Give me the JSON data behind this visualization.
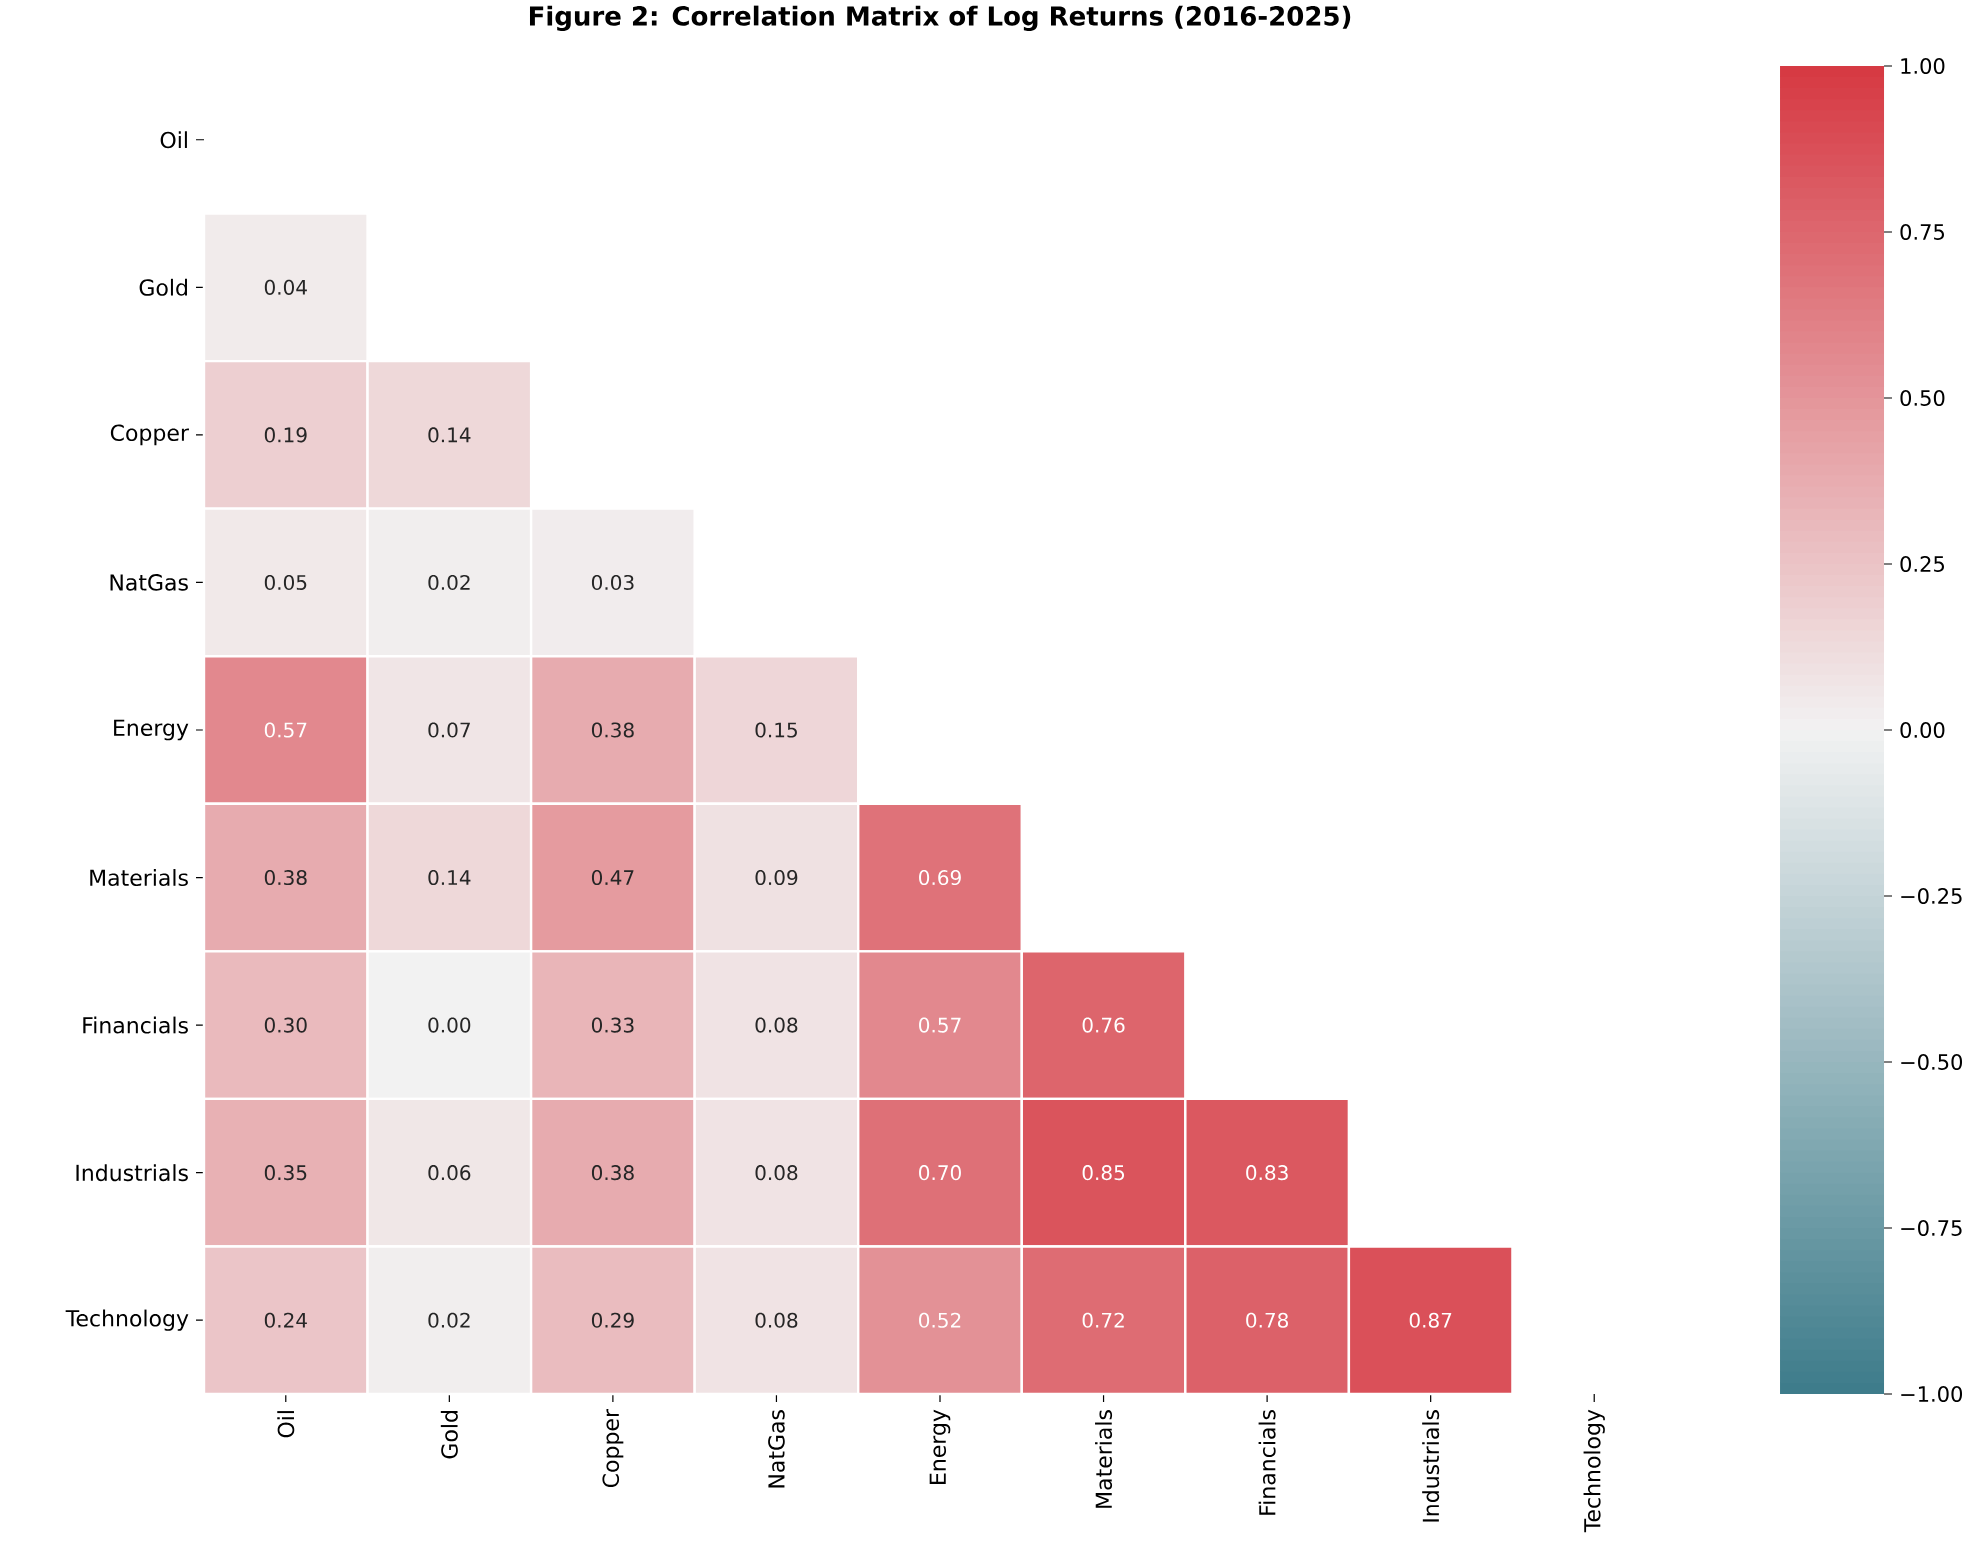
{
  "chart_data": {
    "type": "heatmap",
    "title": "Figure 2: Correlation Matrix of Log Returns (2016-2025)",
    "categories": [
      "Oil",
      "Gold",
      "Copper",
      "NatGas",
      "Energy",
      "Materials",
      "Financials",
      "Industrials",
      "Technology"
    ],
    "y_categories": [
      "Oil",
      "Gold",
      "Copper",
      "NatGas",
      "Energy",
      "Materials",
      "Financials",
      "Industrials",
      "Technology"
    ],
    "cells": [
      [
        null,
        null,
        null,
        null,
        null,
        null,
        null,
        null,
        null
      ],
      [
        0.04,
        null,
        null,
        null,
        null,
        null,
        null,
        null,
        null
      ],
      [
        0.19,
        0.14,
        null,
        null,
        null,
        null,
        null,
        null,
        null
      ],
      [
        0.05,
        0.02,
        0.03,
        null,
        null,
        null,
        null,
        null,
        null
      ],
      [
        0.57,
        0.07,
        0.38,
        0.15,
        null,
        null,
        null,
        null,
        null
      ],
      [
        0.38,
        0.14,
        0.47,
        0.09,
        0.69,
        null,
        null,
        null,
        null
      ],
      [
        0.3,
        0.0,
        0.33,
        0.08,
        0.57,
        0.76,
        null,
        null,
        null
      ],
      [
        0.35,
        0.06,
        0.38,
        0.08,
        0.7,
        0.85,
        0.83,
        null,
        null
      ],
      [
        0.24,
        0.02,
        0.29,
        0.08,
        0.52,
        0.72,
        0.78,
        0.87,
        null
      ]
    ],
    "cell_labels": [
      [
        null,
        null,
        null,
        null,
        null,
        null,
        null,
        null,
        null
      ],
      [
        "0.04",
        null,
        null,
        null,
        null,
        null,
        null,
        null,
        null
      ],
      [
        "0.19",
        "0.14",
        null,
        null,
        null,
        null,
        null,
        null,
        null
      ],
      [
        "0.05",
        "0.02",
        "0.03",
        null,
        null,
        null,
        null,
        null,
        null
      ],
      [
        "0.57",
        "0.07",
        "0.38",
        "0.15",
        null,
        null,
        null,
        null,
        null
      ],
      [
        "0.38",
        "0.14",
        "0.47",
        "0.09",
        "0.69",
        null,
        null,
        null,
        null
      ],
      [
        "0.30",
        "0.00",
        "0.33",
        "0.08",
        "0.57",
        "0.76",
        null,
        null,
        null
      ],
      [
        "0.35",
        "0.06",
        "0.38",
        "0.08",
        "0.70",
        "0.85",
        "0.83",
        null,
        null
      ],
      [
        "0.24",
        "0.02",
        "0.29",
        "0.08",
        "0.52",
        "0.72",
        "0.78",
        "0.87",
        null
      ]
    ],
    "clim": [
      -1,
      1
    ],
    "cticks": [
      {
        "value": -1,
        "label": "−1.00"
      },
      {
        "value": -0.75,
        "label": "−0.75"
      },
      {
        "value": -0.5,
        "label": "−0.50"
      },
      {
        "value": -0.25,
        "label": "−0.25"
      },
      {
        "value": 0,
        "label": "0.00"
      },
      {
        "value": 0.25,
        "label": "0.25"
      },
      {
        "value": 0.5,
        "label": "0.50"
      },
      {
        "value": 0.75,
        "label": "0.75"
      },
      {
        "value": 1,
        "label": "1.00"
      }
    ]
  }
}
